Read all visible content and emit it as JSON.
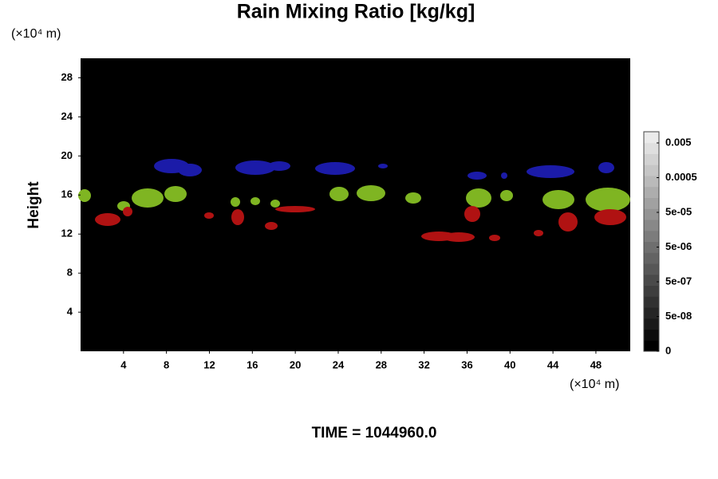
{
  "chart_data": {
    "type": "heatmap",
    "title": "Rain Mixing Ratio [kg/kg]",
    "y_unit": "(×10⁴ m)",
    "x_unit": "(×10⁴ m)",
    "y_label": "Height",
    "annotation": "TIME = 1044960.0",
    "xlim": [
      0,
      51.2
    ],
    "ylim": [
      0,
      30
    ],
    "xticks": [
      4,
      8,
      12,
      16,
      20,
      24,
      28,
      32,
      36,
      40,
      44,
      48
    ],
    "yticks": [
      4,
      8,
      12,
      16,
      20,
      24,
      28
    ],
    "colorbar_ticks": [
      0,
      {
        "value": 5e-08,
        "label": "5e-08"
      },
      {
        "value": 5e-07,
        "label": "5e-07"
      },
      {
        "value": 5e-06,
        "label": "5e-06"
      },
      {
        "value": 5e-05,
        "label": "5e-05"
      },
      {
        "value": 0.0005,
        "label": "0.0005"
      },
      {
        "value": 0.005,
        "label": "0.005"
      }
    ]
  }
}
